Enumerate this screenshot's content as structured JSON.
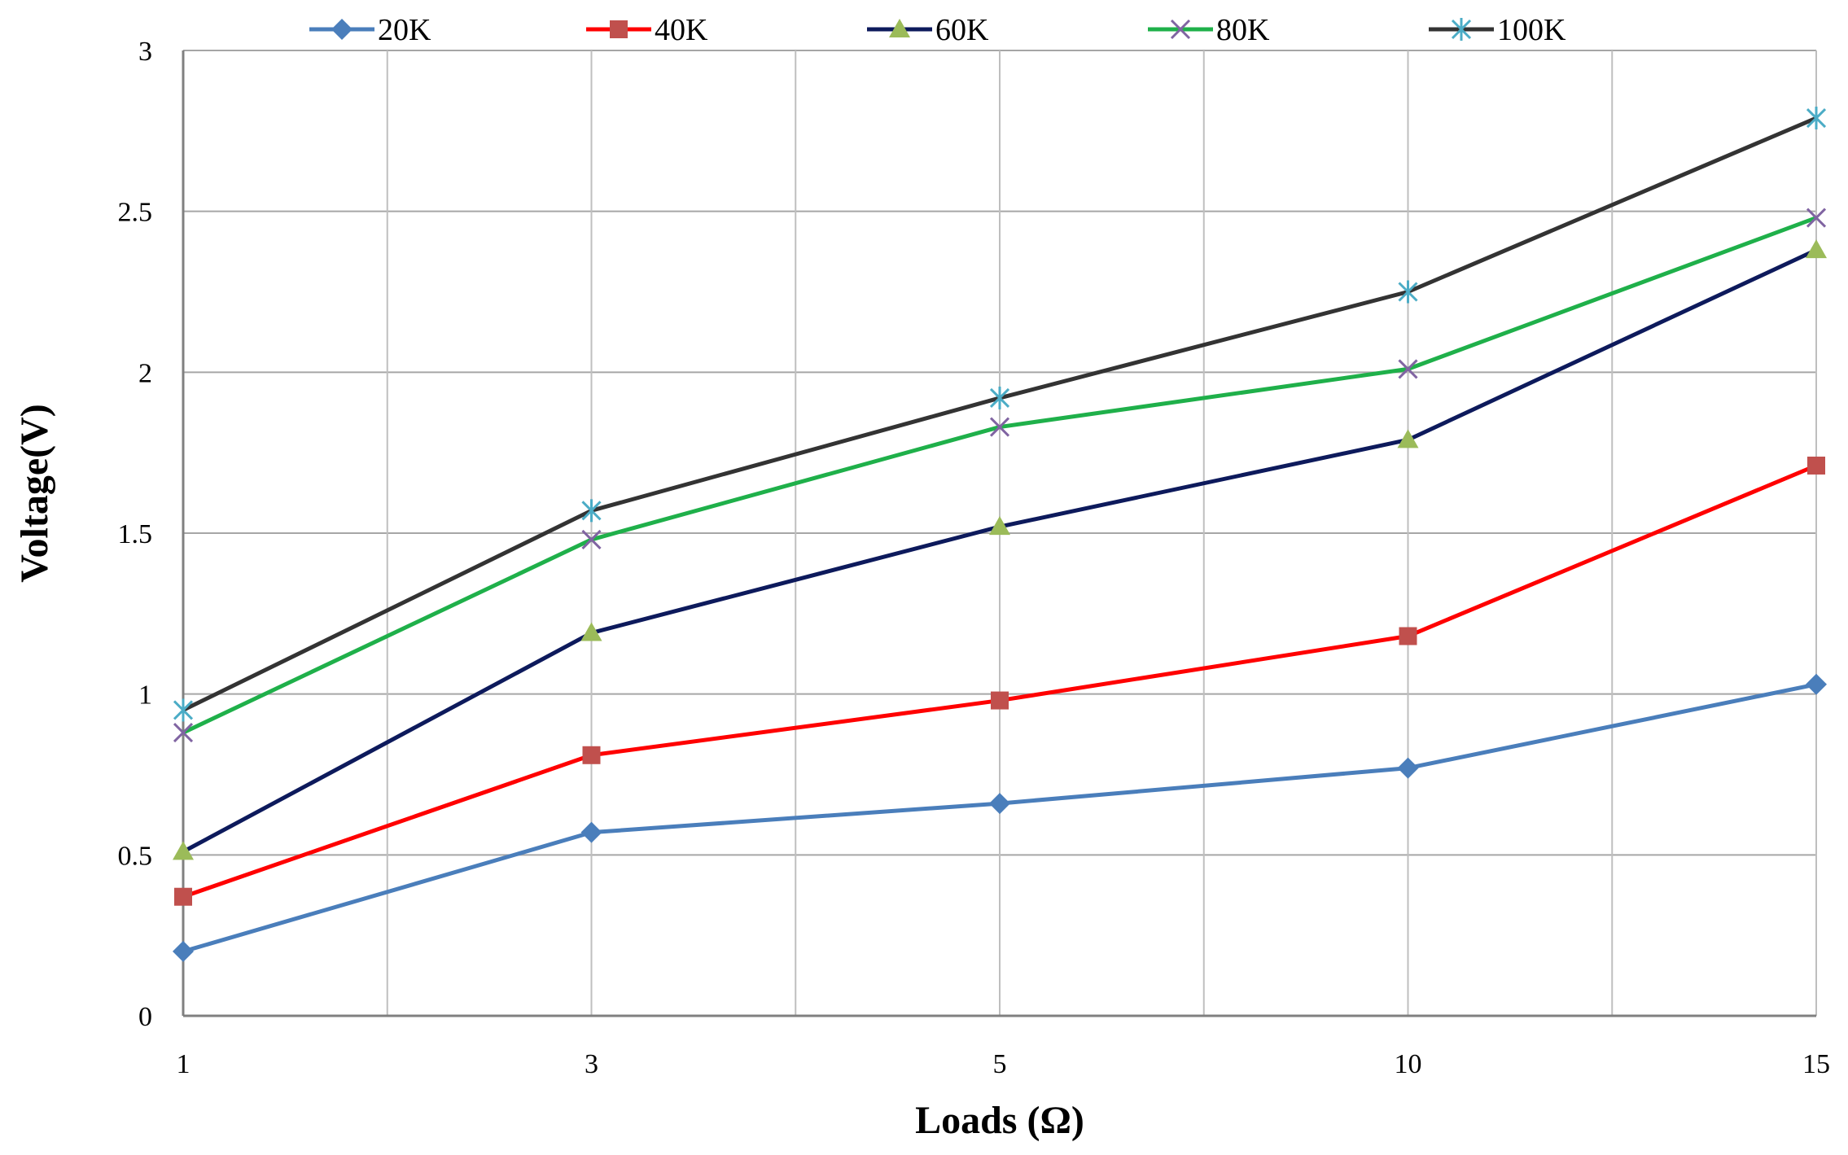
{
  "chart_data": {
    "type": "line",
    "title": "",
    "xlabel": "Loads (Ω)",
    "ylabel": "Voltage(V)",
    "categories": [
      "1",
      "3",
      "5",
      "10",
      "15"
    ],
    "ylim": [
      0,
      3
    ],
    "yticks": [
      "0",
      "0.5",
      "1",
      "1.5",
      "2",
      "2.5",
      "3"
    ],
    "grid": true,
    "legend_position": "top",
    "series": [
      {
        "name": "20K",
        "color": "#4a7ebb",
        "marker": "diamond",
        "values": [
          0.2,
          0.57,
          0.66,
          0.77,
          1.03
        ]
      },
      {
        "name": "40K",
        "color": "#ff0000",
        "marker": "square",
        "marker_color": "#c0504d",
        "values": [
          0.37,
          0.81,
          0.98,
          1.18,
          1.71
        ]
      },
      {
        "name": "60K",
        "color": "#0d1a5c",
        "marker": "triangle",
        "marker_color": "#9bbb59",
        "values": [
          0.51,
          1.19,
          1.52,
          1.79,
          2.38
        ]
      },
      {
        "name": "80K",
        "color": "#1fb04a",
        "marker": "x",
        "marker_color": "#8064a2",
        "values": [
          0.88,
          1.48,
          1.83,
          2.01,
          2.48
        ]
      },
      {
        "name": "100K",
        "color": "#333333",
        "marker": "asterisk",
        "marker_color": "#4bacc6",
        "values": [
          0.95,
          1.57,
          1.92,
          2.25,
          2.79
        ]
      }
    ]
  }
}
